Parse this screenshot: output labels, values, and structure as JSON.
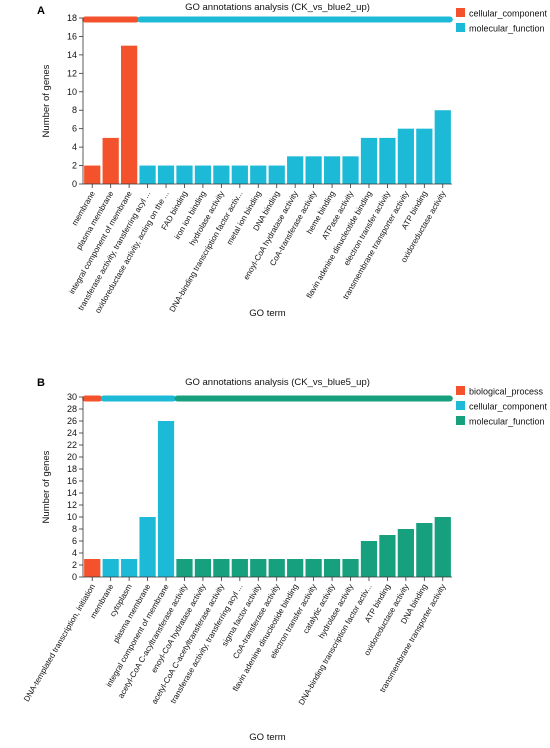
{
  "chart_data": [
    {
      "type": "bar",
      "panel_label": "A",
      "title": "GO annotations analysis (CK_vs_blue2_up)",
      "xlabel": "GO term",
      "ylabel": "Number of genes",
      "ylim": [
        0,
        18
      ],
      "yticks": [
        0,
        2,
        4,
        6,
        8,
        10,
        12,
        14,
        16,
        18
      ],
      "legend_position": "top-right",
      "series": [
        {
          "name": "cellular_component",
          "color": "#f4522d"
        },
        {
          "name": "molecular_function",
          "color": "#1dbad8"
        }
      ],
      "categories": [
        "membrane",
        "plasma membrane",
        "integral component of membrane",
        "transferase activity, transferring acyl ...",
        "oxidoreductase activity, acting on the ...",
        "FAD binding",
        "iron ion binding",
        "hydrolase activity",
        "DNA-binding transcription factor activ...",
        "metal ion binding",
        "DNA binding",
        "enoyl-CoA hydratase activity",
        "CoA-transferase activity",
        "heme binding",
        "ATPase activity",
        "flavin adenine dinucleotide binding",
        "electron transfer activity",
        "transmembrane transporter activity",
        "ATP binding",
        "oxidoreductase activity"
      ],
      "values": [
        2,
        5,
        15,
        2,
        2,
        2,
        2,
        2,
        2,
        2,
        2,
        3,
        3,
        3,
        3,
        5,
        5,
        6,
        6,
        8
      ],
      "groups": [
        0,
        0,
        0,
        1,
        1,
        1,
        1,
        1,
        1,
        1,
        1,
        1,
        1,
        1,
        1,
        1,
        1,
        1,
        1,
        1
      ]
    },
    {
      "type": "bar",
      "panel_label": "B",
      "title": "GO annotations analysis (CK_vs_blue5_up)",
      "xlabel": "GO term",
      "ylabel": "Number of genes",
      "ylim": [
        0,
        30
      ],
      "yticks": [
        0,
        2,
        4,
        6,
        8,
        10,
        12,
        14,
        16,
        18,
        20,
        22,
        24,
        26,
        28,
        30
      ],
      "legend_position": "top-right",
      "series": [
        {
          "name": "biological_process",
          "color": "#f4522d"
        },
        {
          "name": "cellular_component",
          "color": "#1dbad8"
        },
        {
          "name": "molecular_function",
          "color": "#17a07e"
        }
      ],
      "categories": [
        "DNA-templated transcription, initiation",
        "membrane",
        "cytoplasm",
        "plasma membrane",
        "integral component of membrane",
        "acetyl-CoA C-acyltransferase activity",
        "enoyl-CoA hydratase activity",
        "acetyl-CoA C-acetyltransferase activity",
        "transferase activity, transferring acyl ...",
        "sigma factor activity",
        "CoA-transferase activity",
        "flavin adenine dinucleotide binding",
        "electron transfer activity",
        "catalytic activity",
        "hydrolase activity",
        "DNA-binding transcription factor activ...",
        "ATP binding",
        "oxidoreductase activity",
        "DNA binding",
        "transmembrane transporter activity"
      ],
      "values": [
        3,
        3,
        3,
        10,
        26,
        3,
        3,
        3,
        3,
        3,
        3,
        3,
        3,
        3,
        3,
        6,
        7,
        8,
        9,
        10
      ],
      "groups": [
        0,
        1,
        1,
        1,
        1,
        2,
        2,
        2,
        2,
        2,
        2,
        2,
        2,
        2,
        2,
        2,
        2,
        2,
        2,
        2
      ]
    }
  ]
}
